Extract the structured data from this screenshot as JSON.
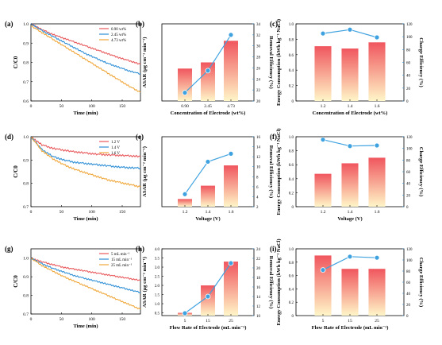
{
  "colors": {
    "red": "#e8585b",
    "blue": "#2f8fd6",
    "orange": "#f0a73a",
    "bar_top": "#f0565e",
    "bar_bottom": "#fff6c8",
    "point": "#3fa2e0",
    "axis_right": "#2f8fd6"
  },
  "charts": [
    {
      "panel": "(a)",
      "kind": "line",
      "xlabel": "Time (min)",
      "ylabel": "C/C0",
      "xlim": [
        0,
        180
      ],
      "ylim": [
        0.6,
        1.0
      ],
      "xticks": [
        "0",
        "50",
        "100",
        "150"
      ],
      "yticks": [
        "0.6",
        "0.7",
        "0.8",
        "0.9",
        "1.0"
      ],
      "series": [
        {
          "name": "0.90 wt%",
          "color_key": "red",
          "y": [
            1.0,
            0.97,
            0.945,
            0.925,
            0.905,
            0.885,
            0.865,
            0.845,
            0.825,
            0.808,
            0.79
          ]
        },
        {
          "name": "2.45 wt%",
          "color_key": "blue",
          "y": [
            1.0,
            0.965,
            0.935,
            0.905,
            0.875,
            0.845,
            0.82,
            0.795,
            0.775,
            0.755,
            0.74
          ]
        },
        {
          "name": "4.73 wt%",
          "color_key": "orange",
          "y": [
            0.99,
            0.955,
            0.92,
            0.885,
            0.85,
            0.815,
            0.78,
            0.745,
            0.71,
            0.675,
            0.645
          ]
        }
      ]
    },
    {
      "panel": "(b)",
      "kind": "barline",
      "xlabel": "Concentration of Electrode (wt%)",
      "ylabel": "ASAR (μg cm⁻² min⁻¹)",
      "ylabel2": "Removal Efficiency (%)",
      "categories": [
        "0.90",
        "2.45",
        "4.73"
      ],
      "bars": [
        0.42,
        0.5,
        0.78
      ],
      "bar_ylim": [
        0,
        1
      ],
      "line": [
        21.5,
        25.5,
        32.0
      ],
      "line_ylim": [
        20,
        34
      ],
      "yticks2": [
        "20",
        "22",
        "24",
        "26",
        "28",
        "30",
        "32",
        "34"
      ]
    },
    {
      "panel": "(c)",
      "kind": "barline",
      "xlabel": "Concentration of Electrode (wt%)",
      "ylabel": "Energy Consumption (kWh kg⁻¹ NaCl)",
      "ylabel2": "Charge Efficiency (%)",
      "categories": [
        "1.2",
        "1.4",
        "1.6"
      ],
      "bars": [
        0.71,
        0.68,
        0.76
      ],
      "bar_ylim": [
        0,
        1.0
      ],
      "yticks": [
        "0",
        "0.2",
        "0.4",
        "0.6",
        "0.8",
        "1.0"
      ],
      "line": [
        105,
        111,
        99
      ],
      "line_ylim": [
        0,
        120
      ],
      "yticks2": [
        "0",
        "20",
        "40",
        "60",
        "80",
        "100",
        "120"
      ]
    },
    {
      "panel": "(d)",
      "kind": "line",
      "xlabel": "Time (min)",
      "ylabel": "C/C0",
      "xlim": [
        0,
        180
      ],
      "ylim": [
        0.7,
        1.0
      ],
      "xticks": [
        "0",
        "50",
        "100",
        "150"
      ],
      "yticks": [
        "0.7",
        "0.8",
        "0.9",
        "1.0"
      ],
      "series": [
        {
          "name": "1.2 V",
          "color_key": "red",
          "y": [
            1.0,
            0.965,
            0.95,
            0.942,
            0.935,
            0.93,
            0.925,
            0.922,
            0.92,
            0.918,
            0.915
          ]
        },
        {
          "name": "1.4 V",
          "color_key": "blue",
          "y": [
            1.0,
            0.945,
            0.915,
            0.9,
            0.89,
            0.885,
            0.88,
            0.875,
            0.87,
            0.867,
            0.865
          ]
        },
        {
          "name": "1.6 V",
          "color_key": "orange",
          "y": [
            1.0,
            0.94,
            0.905,
            0.88,
            0.86,
            0.845,
            0.83,
            0.815,
            0.805,
            0.795,
            0.785
          ]
        }
      ]
    },
    {
      "panel": "(e)",
      "kind": "barline",
      "xlabel": "Voltage (V)",
      "ylabel": "ASAR (μg cm⁻² min⁻¹)",
      "ylabel2": "Removal Efficiency (%)",
      "categories": [
        "1.2",
        "1.4",
        "1.6"
      ],
      "bars": [
        0.11,
        0.3,
        0.59
      ],
      "bar_ylim": [
        0,
        1
      ],
      "line": [
        4.5,
        11.0,
        12.6
      ],
      "line_ylim": [
        2,
        16
      ],
      "yticks2": [
        "2",
        "4",
        "6",
        "8",
        "10",
        "12",
        "14",
        "16"
      ]
    },
    {
      "panel": "(f)",
      "kind": "barline",
      "xlabel": "Voltage (V)",
      "ylabel": "Energy Consumption (kWh kg⁻¹ NaCl)",
      "ylabel2": "Charge Efficiency (%)",
      "categories": [
        "1.2",
        "1.4",
        "1.6"
      ],
      "bars": [
        0.47,
        0.62,
        0.7
      ],
      "bar_ylim": [
        0,
        1.0
      ],
      "yticks": [
        "0",
        "0.2",
        "0.4",
        "0.6",
        "0.8",
        "1.0"
      ],
      "line": [
        115,
        104,
        105
      ],
      "line_ylim": [
        0,
        120
      ],
      "yticks2": [
        "0",
        "20",
        "40",
        "60",
        "80",
        "100",
        "120"
      ]
    },
    {
      "panel": "(g)",
      "kind": "line",
      "xlabel": "Time (min)",
      "ylabel": "C/C0",
      "xlim": [
        0,
        180
      ],
      "ylim": [
        0.7,
        1.05
      ],
      "xticks": [
        "0",
        "50",
        "100",
        "150"
      ],
      "yticks": [
        "0.7",
        "0.8",
        "0.9",
        "1.0"
      ],
      "series": [
        {
          "name": "5 mL min⁻¹",
          "color_key": "red",
          "y": [
            1.0,
            0.98,
            0.965,
            0.95,
            0.94,
            0.93,
            0.92,
            0.91,
            0.9,
            0.89,
            0.88
          ]
        },
        {
          "name": "15 mL min⁻¹",
          "color_key": "blue",
          "y": [
            1.0,
            0.97,
            0.945,
            0.925,
            0.905,
            0.89,
            0.875,
            0.86,
            0.845,
            0.83,
            0.815
          ]
        },
        {
          "name": "25 mL min⁻¹",
          "color_key": "orange",
          "y": [
            1.0,
            0.96,
            0.93,
            0.9,
            0.875,
            0.85,
            0.825,
            0.8,
            0.775,
            0.75,
            0.725
          ]
        }
      ]
    },
    {
      "panel": "(h)",
      "kind": "barline",
      "xlabel": "Flow Rate of Electrode (mL min⁻¹)",
      "ylabel": "ASAR (μg cm⁻² min⁻¹)",
      "ylabel2": "Removal Efficiency (%)",
      "categories": [
        "5",
        "15",
        "25"
      ],
      "bars": [
        0.5,
        2.0,
        3.3
      ],
      "bar_ylim": [
        0.35,
        4.0
      ],
      "yticks": [
        "0.5",
        "1.0",
        "1.5",
        "2.0",
        "2.5",
        "3.0",
        "3.5",
        "4.0"
      ],
      "line": [
        10.5,
        14.0,
        21.0
      ],
      "line_ylim": [
        10,
        24
      ],
      "yticks2": [
        "10",
        "12",
        "14",
        "16",
        "18",
        "20",
        "22",
        "24"
      ]
    },
    {
      "panel": "(i)",
      "kind": "barline",
      "xlabel": "Flow Rate of Electrode (mL min⁻¹)",
      "ylabel": "Energy Consumption (kWh kg⁻¹ NaCl)",
      "ylabel2": "Charge Efficiency (%)",
      "categories": [
        "5",
        "15",
        "25"
      ],
      "bars": [
        0.9,
        0.7,
        0.7
      ],
      "bar_ylim": [
        0,
        1.0
      ],
      "yticks": [
        "0",
        "0.2",
        "0.4",
        "0.6",
        "0.8",
        "1.0"
      ],
      "line": [
        82,
        106,
        104
      ],
      "line_ylim": [
        0,
        120
      ],
      "yticks2": [
        "0",
        "20",
        "40",
        "60",
        "80",
        "100",
        "120"
      ]
    }
  ]
}
